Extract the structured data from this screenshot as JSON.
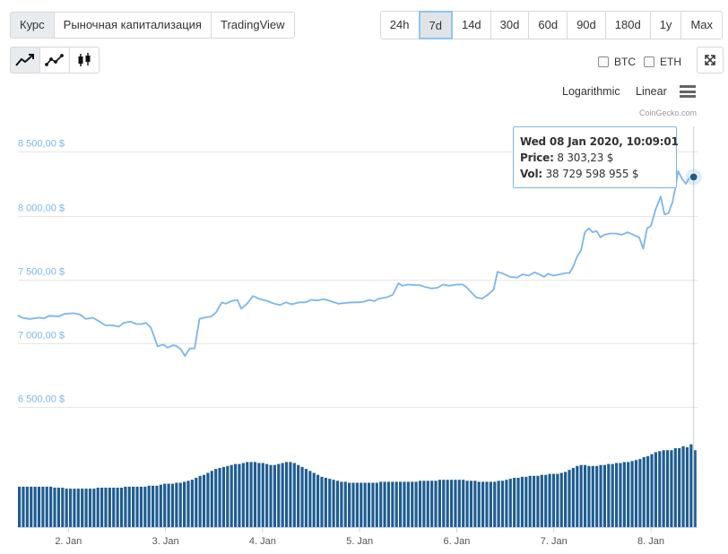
{
  "tabs": [
    {
      "label": "Курс",
      "active": true
    },
    {
      "label": "Рыночная капитализация",
      "active": false
    },
    {
      "label": "TradingView",
      "active": false
    }
  ],
  "ranges": [
    {
      "label": "24h",
      "active": false
    },
    {
      "label": "7d",
      "active": true
    },
    {
      "label": "14d",
      "active": false
    },
    {
      "label": "30d",
      "active": false
    },
    {
      "label": "60d",
      "active": false
    },
    {
      "label": "90d",
      "active": false
    },
    {
      "label": "180d",
      "active": false
    },
    {
      "label": "1y",
      "active": false
    },
    {
      "label": "Max",
      "active": false
    }
  ],
  "chart_types": [
    {
      "icon": "line-chart-icon",
      "active": true
    },
    {
      "icon": "line-markers-icon",
      "active": false
    },
    {
      "icon": "candlestick-icon",
      "active": false
    }
  ],
  "compare": {
    "btc_label": "BTC",
    "eth_label": "ETH"
  },
  "scale": {
    "log_label": "Logarithmic",
    "linear_label": "Linear"
  },
  "credit": "CoinGecko.com",
  "tooltip": {
    "date": "Wed 08 Jan 2020, 10:09:01",
    "price_label": "Price:",
    "price_value": "8 303,23 $",
    "vol_label": "Vol:",
    "vol_value": "38 729 598 955 $"
  },
  "colors": {
    "line": "#7cb5ec",
    "volume": "#1e5d91",
    "marker": "#1e5d91"
  },
  "chart_data": {
    "type": "line",
    "y_ticks": [
      8500,
      8000,
      7500,
      7000,
      6500
    ],
    "y_tick_labels": [
      "8 500,00 $",
      "8 000,00 $",
      "7 500,00 $",
      "7 000,00 $",
      "6 500,00 $"
    ],
    "ylim": [
      6500,
      8700
    ],
    "x_ticks": [
      1,
      2,
      3,
      4,
      5,
      6,
      7
    ],
    "x_tick_labels": [
      "2. Jan",
      "3. Jan",
      "4. Jan",
      "5. Jan",
      "6. Jan",
      "7. Jan",
      "8. Jan"
    ],
    "xlim": [
      0.48,
      7.48
    ],
    "grid": true,
    "series": [
      {
        "values": [
          [
            0.48,
            7220
          ],
          [
            0.52,
            7200
          ],
          [
            0.6,
            7190
          ],
          [
            0.7,
            7200
          ],
          [
            0.75,
            7195
          ],
          [
            0.8,
            7215
          ],
          [
            0.9,
            7210
          ],
          [
            0.96,
            7230
          ],
          [
            1.05,
            7235
          ],
          [
            1.12,
            7225
          ],
          [
            1.18,
            7190
          ],
          [
            1.25,
            7200
          ],
          [
            1.32,
            7170
          ],
          [
            1.38,
            7140
          ],
          [
            1.45,
            7140
          ],
          [
            1.52,
            7130
          ],
          [
            1.57,
            7160
          ],
          [
            1.64,
            7170
          ],
          [
            1.7,
            7150
          ],
          [
            1.75,
            7150
          ],
          [
            1.8,
            7160
          ],
          [
            1.85,
            7120
          ],
          [
            1.92,
            6975
          ],
          [
            1.98,
            6990
          ],
          [
            2.02,
            6965
          ],
          [
            2.08,
            6985
          ],
          [
            2.12,
            6975
          ],
          [
            2.16,
            6950
          ],
          [
            2.2,
            6900
          ],
          [
            2.25,
            6960
          ],
          [
            2.3,
            6960
          ],
          [
            2.35,
            7190
          ],
          [
            2.4,
            7200
          ],
          [
            2.47,
            7210
          ],
          [
            2.52,
            7240
          ],
          [
            2.58,
            7320
          ],
          [
            2.62,
            7310
          ],
          [
            2.68,
            7330
          ],
          [
            2.74,
            7340
          ],
          [
            2.78,
            7270
          ],
          [
            2.84,
            7310
          ],
          [
            2.9,
            7370
          ],
          [
            2.96,
            7350
          ],
          [
            3.05,
            7330
          ],
          [
            3.12,
            7310
          ],
          [
            3.18,
            7300
          ],
          [
            3.24,
            7320
          ],
          [
            3.3,
            7305
          ],
          [
            3.38,
            7320
          ],
          [
            3.44,
            7320
          ],
          [
            3.5,
            7340
          ],
          [
            3.56,
            7335
          ],
          [
            3.63,
            7345
          ],
          [
            3.7,
            7330
          ],
          [
            3.78,
            7310
          ],
          [
            3.85,
            7315
          ],
          [
            3.92,
            7320
          ],
          [
            3.98,
            7320
          ],
          [
            4.04,
            7325
          ],
          [
            4.1,
            7340
          ],
          [
            4.15,
            7330
          ],
          [
            4.2,
            7350
          ],
          [
            4.28,
            7360
          ],
          [
            4.34,
            7380
          ],
          [
            4.4,
            7470
          ],
          [
            4.44,
            7450
          ],
          [
            4.5,
            7460
          ],
          [
            4.57,
            7455
          ],
          [
            4.62,
            7455
          ],
          [
            4.68,
            7440
          ],
          [
            4.74,
            7430
          ],
          [
            4.8,
            7435
          ],
          [
            4.86,
            7460
          ],
          [
            4.92,
            7450
          ],
          [
            5.0,
            7460
          ],
          [
            5.06,
            7460
          ],
          [
            5.1,
            7440
          ],
          [
            5.16,
            7390
          ],
          [
            5.2,
            7360
          ],
          [
            5.26,
            7350
          ],
          [
            5.32,
            7380
          ],
          [
            5.38,
            7420
          ],
          [
            5.42,
            7560
          ],
          [
            5.48,
            7545
          ],
          [
            5.55,
            7520
          ],
          [
            5.62,
            7515
          ],
          [
            5.68,
            7540
          ],
          [
            5.74,
            7530
          ],
          [
            5.8,
            7555
          ],
          [
            5.85,
            7540
          ],
          [
            5.9,
            7520
          ],
          [
            5.94,
            7545
          ],
          [
            6.0,
            7530
          ],
          [
            6.06,
            7540
          ],
          [
            6.12,
            7550
          ],
          [
            6.16,
            7550
          ],
          [
            6.2,
            7600
          ],
          [
            6.24,
            7680
          ],
          [
            6.28,
            7730
          ],
          [
            6.32,
            7870
          ],
          [
            6.36,
            7900
          ],
          [
            6.4,
            7870
          ],
          [
            6.44,
            7880
          ],
          [
            6.48,
            7830
          ],
          [
            6.52,
            7850
          ],
          [
            6.58,
            7860
          ],
          [
            6.64,
            7860
          ],
          [
            6.7,
            7850
          ],
          [
            6.76,
            7870
          ],
          [
            6.82,
            7850
          ],
          [
            6.88,
            7830
          ],
          [
            6.92,
            7740
          ],
          [
            6.96,
            7900
          ],
          [
            7.0,
            7920
          ],
          [
            7.05,
            8050
          ],
          [
            7.1,
            8150
          ],
          [
            7.14,
            8010
          ],
          [
            7.18,
            8020
          ],
          [
            7.22,
            8100
          ],
          [
            7.25,
            8210
          ],
          [
            7.28,
            8350
          ],
          [
            7.32,
            8290
          ],
          [
            7.36,
            8250
          ],
          [
            7.4,
            8300
          ],
          [
            7.44,
            8303
          ]
        ]
      }
    ],
    "volume": {
      "values": [
        0.41,
        0.41,
        0.41,
        0.41,
        0.41,
        0.41,
        0.41,
        0.41,
        0.41,
        0.4,
        0.4,
        0.4,
        0.39,
        0.39,
        0.39,
        0.39,
        0.39,
        0.39,
        0.39,
        0.39,
        0.4,
        0.4,
        0.4,
        0.4,
        0.4,
        0.4,
        0.4,
        0.41,
        0.41,
        0.41,
        0.41,
        0.41,
        0.41,
        0.42,
        0.42,
        0.42,
        0.43,
        0.44,
        0.44,
        0.44,
        0.45,
        0.45,
        0.46,
        0.47,
        0.48,
        0.5,
        0.52,
        0.53,
        0.55,
        0.57,
        0.59,
        0.6,
        0.61,
        0.62,
        0.63,
        0.64,
        0.64,
        0.65,
        0.66,
        0.66,
        0.66,
        0.65,
        0.65,
        0.64,
        0.63,
        0.63,
        0.64,
        0.65,
        0.66,
        0.66,
        0.65,
        0.63,
        0.61,
        0.59,
        0.57,
        0.55,
        0.53,
        0.51,
        0.5,
        0.49,
        0.48,
        0.47,
        0.46,
        0.46,
        0.45,
        0.45,
        0.45,
        0.45,
        0.45,
        0.45,
        0.45,
        0.45,
        0.46,
        0.46,
        0.46,
        0.46,
        0.46,
        0.46,
        0.46,
        0.46,
        0.46,
        0.46,
        0.47,
        0.47,
        0.47,
        0.47,
        0.47,
        0.48,
        0.48,
        0.48,
        0.48,
        0.48,
        0.48,
        0.48,
        0.47,
        0.47,
        0.47,
        0.46,
        0.46,
        0.46,
        0.46,
        0.46,
        0.47,
        0.47,
        0.48,
        0.49,
        0.5,
        0.5,
        0.51,
        0.51,
        0.52,
        0.52,
        0.52,
        0.53,
        0.53,
        0.54,
        0.54,
        0.54,
        0.55,
        0.56,
        0.58,
        0.6,
        0.62,
        0.63,
        0.63,
        0.62,
        0.62,
        0.62,
        0.63,
        0.63,
        0.64,
        0.64,
        0.65,
        0.65,
        0.66,
        0.66,
        0.67,
        0.68,
        0.69,
        0.71,
        0.72,
        0.74,
        0.76,
        0.77,
        0.78,
        0.78,
        0.78,
        0.8,
        0.8,
        0.82,
        0.81,
        0.84,
        0.78
      ]
    },
    "tooltip_point": {
      "x": 7.44,
      "y": 8303.23
    }
  }
}
